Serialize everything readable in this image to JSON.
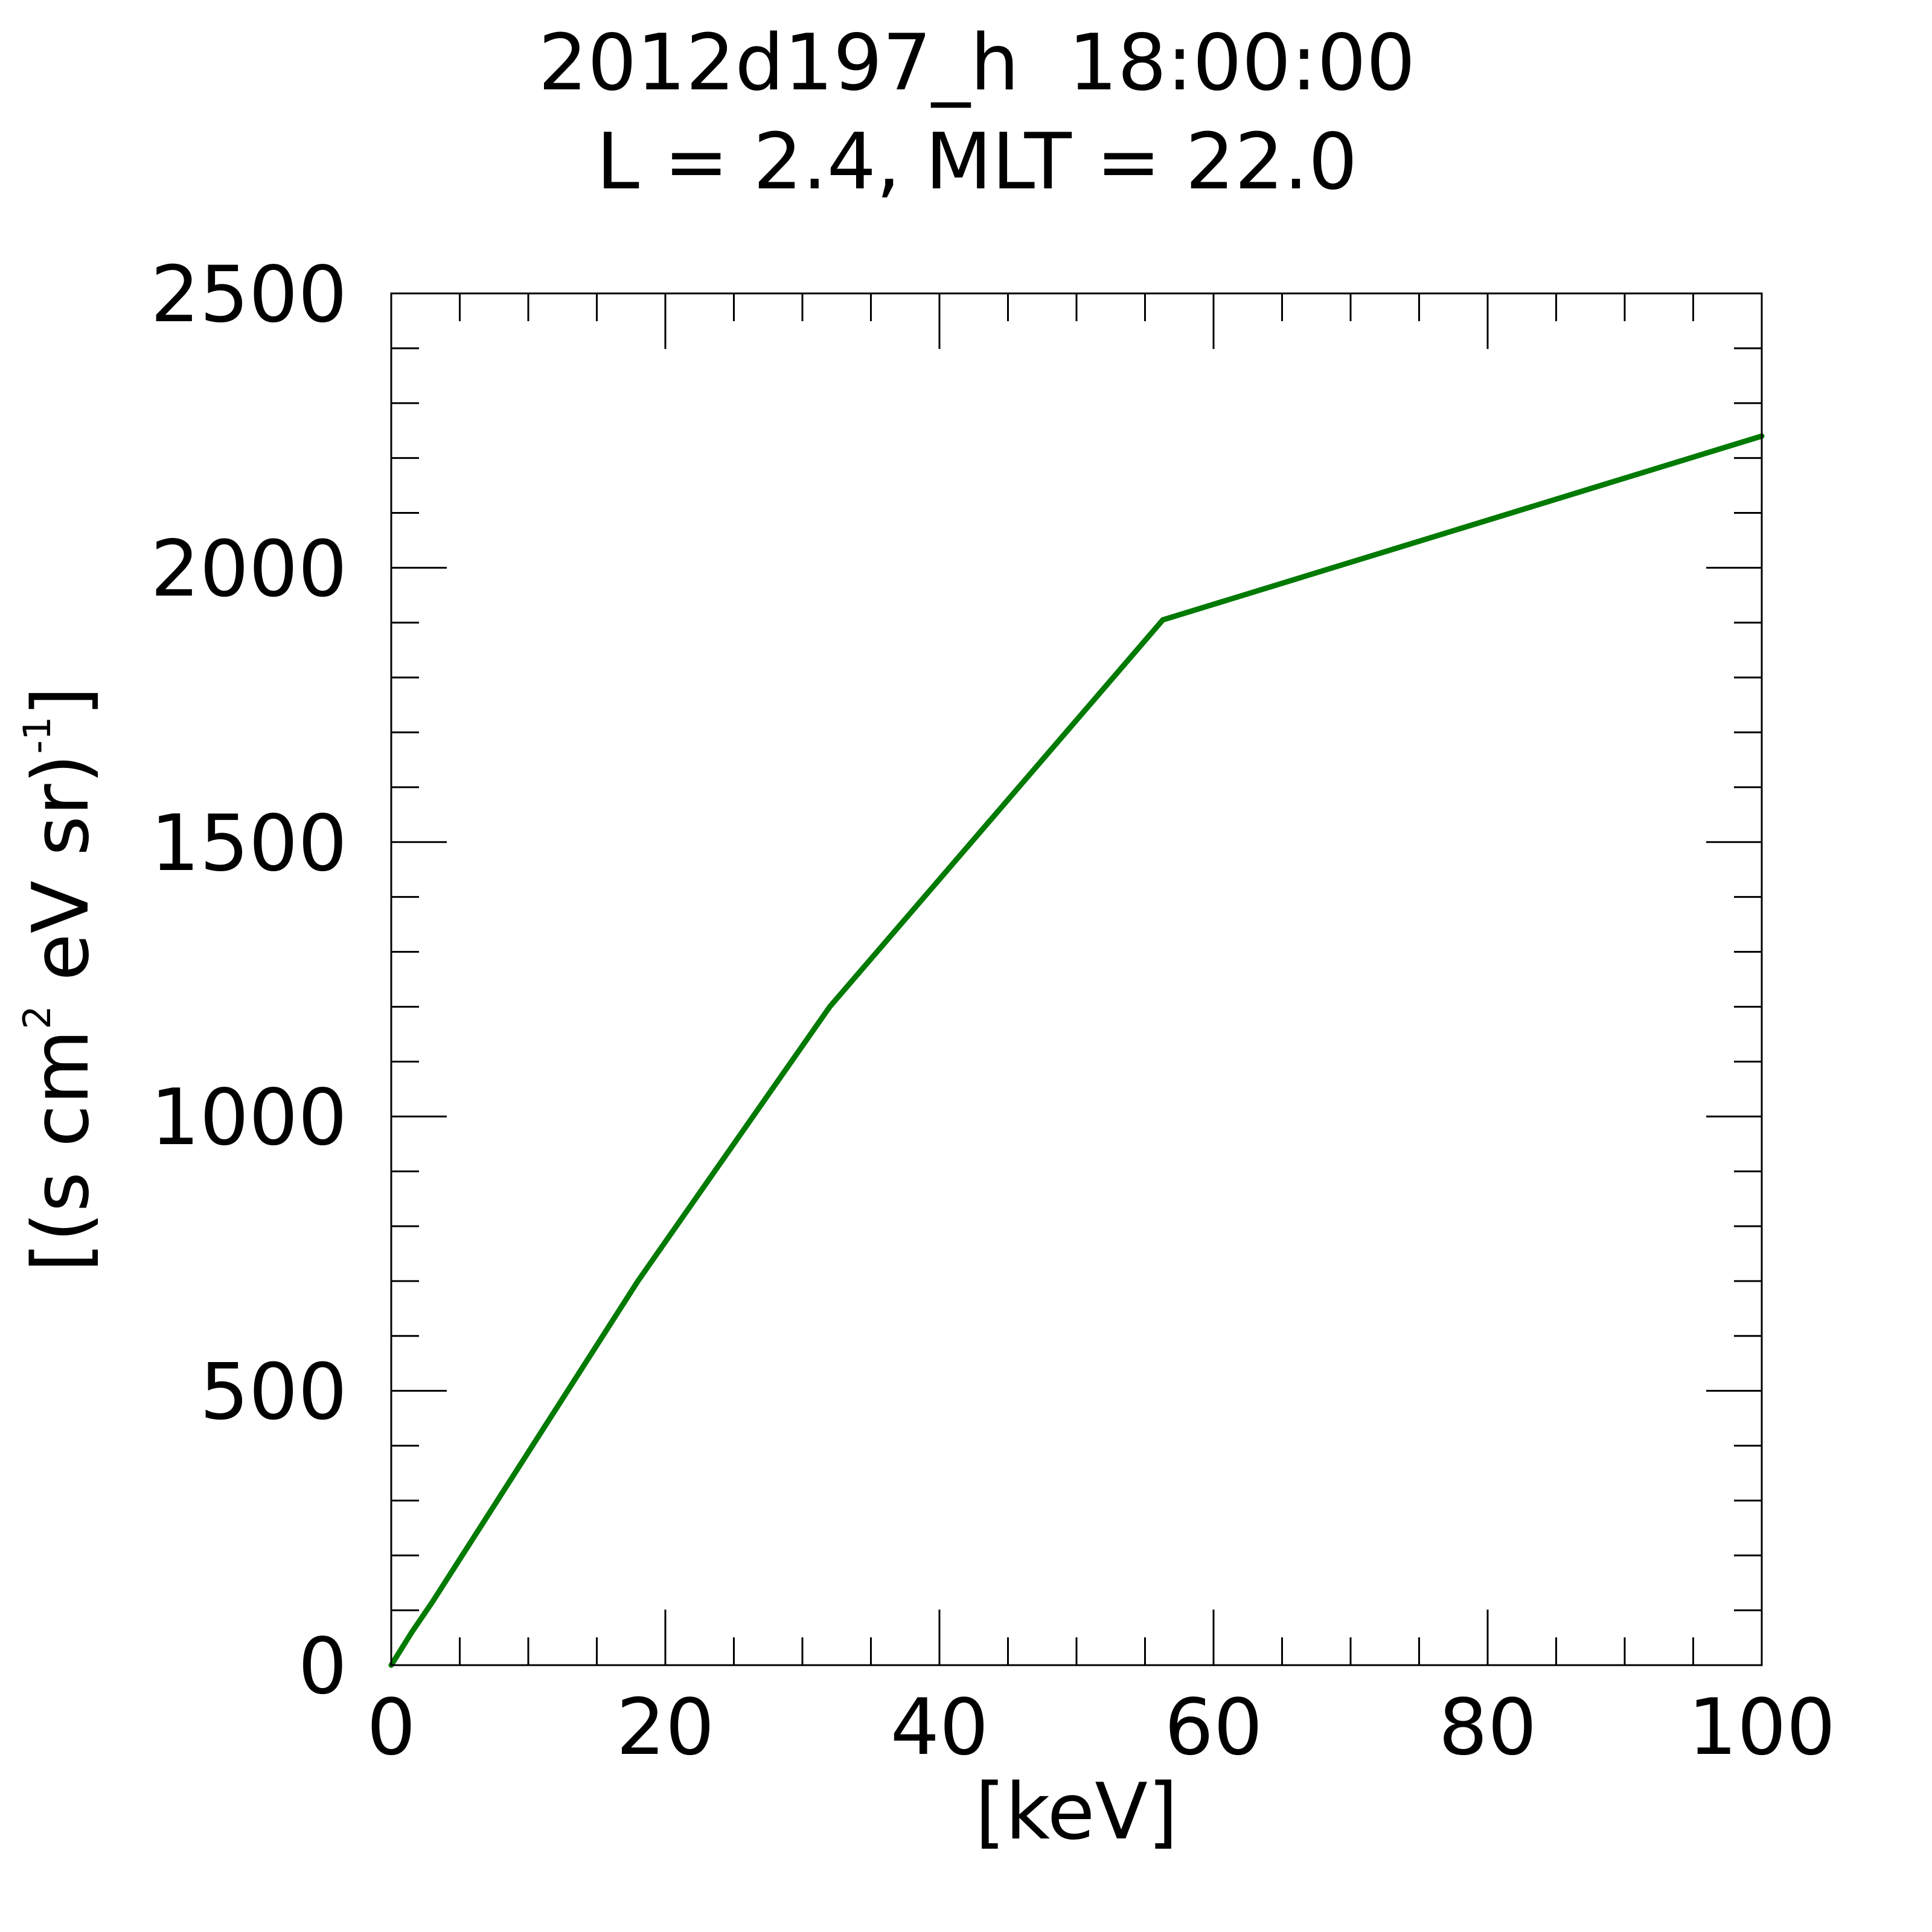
{
  "chart_data": {
    "type": "line",
    "title": "2012d197_h  18:00:00",
    "subtitle": "L = 2.4, MLT = 22.0",
    "xlabel": "[keV]",
    "ylabel": {
      "prefix": "[(s cm",
      "sup1": "2",
      "mid": " eV sr)",
      "sup2": "-1",
      "suffix": "]"
    },
    "xlim": [
      0,
      100
    ],
    "ylim": [
      0,
      2500
    ],
    "x_ticks": [
      0,
      20,
      40,
      60,
      80,
      100
    ],
    "x_tick_labels": [
      "0",
      "20",
      "40",
      "60",
      "80",
      "100"
    ],
    "y_ticks": [
      0,
      500,
      1000,
      1500,
      2000,
      2500
    ],
    "y_tick_labels": [
      "0",
      "500",
      "1000",
      "1500",
      "2000",
      "2500"
    ],
    "x_minor_step": 5,
    "y_minor_step": 100,
    "grid": false,
    "series": [
      {
        "color": "#007a00",
        "x": [
          0,
          1.5,
          3,
          18,
          32,
          56.3,
          100
        ],
        "y": [
          0,
          60,
          115,
          700,
          1200,
          1905,
          2240
        ]
      }
    ]
  }
}
